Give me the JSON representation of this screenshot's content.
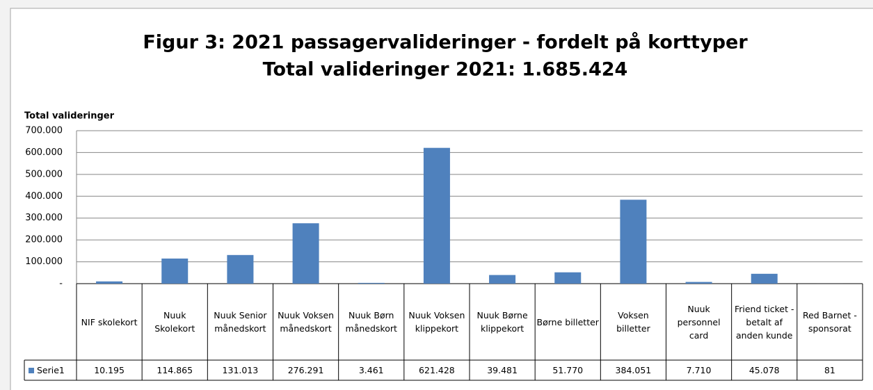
{
  "chart_data": {
    "type": "bar",
    "title": "Figur 3: 2021 passagervalideringer - fordelt på korttyper",
    "subtitle": "Total valideringer 2021: 1.685.424",
    "y_label": "Total valideringer",
    "categories": [
      "NIF skolekort",
      "Nuuk Skolekort",
      "Nuuk Senior månedskort",
      "Nuuk Voksen månedskort",
      "Nuuk Børn månedskort",
      "Nuuk Voksen klippekort",
      "Nuuk Børne klippekort",
      "Børne billetter",
      "Voksen billetter",
      "Nuuk personnel card",
      "Friend ticket - betalt af anden kunde",
      "Red Barnet - sponsorat"
    ],
    "series": [
      {
        "name": "Serie1",
        "color": "#4f81bd",
        "values": [
          10195,
          114865,
          131013,
          276291,
          3461,
          621428,
          39481,
          51770,
          384051,
          7710,
          45078,
          81
        ],
        "value_labels": [
          "10.195",
          "114.865",
          "131.013",
          "276.291",
          "3.461",
          "621.428",
          "39.481",
          "51.770",
          "384.051",
          "7.710",
          "45.078",
          "81"
        ]
      }
    ],
    "ylim": [
      0,
      700000
    ],
    "yticks": [
      {
        "value": 0,
        "label": "-"
      },
      {
        "value": 100000,
        "label": "100.000"
      },
      {
        "value": 200000,
        "label": "200.000"
      },
      {
        "value": 300000,
        "label": "300.000"
      },
      {
        "value": 400000,
        "label": "400.000"
      },
      {
        "value": 500000,
        "label": "500.000"
      },
      {
        "value": 600000,
        "label": "600.000"
      },
      {
        "value": 700000,
        "label": "700.000"
      }
    ],
    "grid": true
  }
}
